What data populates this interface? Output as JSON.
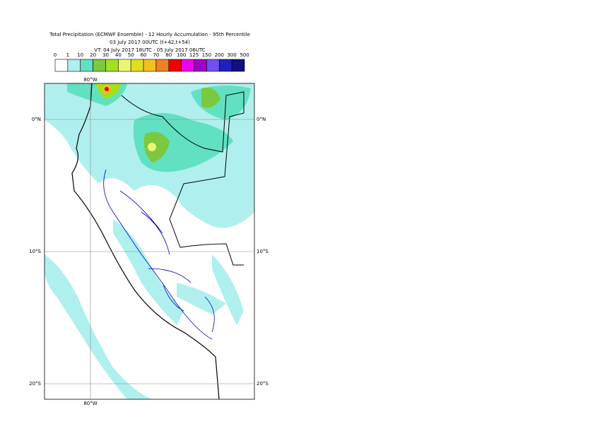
{
  "header": {
    "title": "Total Precipitation (ECMWF Ensemble) - 12 Hourly Accumulation - 95th Percentile",
    "run": "03 July 2017 00UTC (t+42,t+54)",
    "valid": "VT: 04 July 2017 18UTC - 05 July 2017 06UTC"
  },
  "legend": {
    "labels": [
      "0",
      "1",
      "10",
      "20",
      "30",
      "40",
      "50",
      "60",
      "70",
      "80",
      "100",
      "125",
      "150",
      "200",
      "300",
      "500"
    ],
    "colors": [
      "#ffffff",
      "#aff0ee",
      "#62e0c2",
      "#7cc83e",
      "#a2e020",
      "#eaf870",
      "#e0e020",
      "#f2c020",
      "#f28020",
      "#f00000",
      "#f000f0",
      "#a000c8",
      "#7050f0",
      "#2020c0",
      "#101080"
    ]
  },
  "map": {
    "lon_labels": [
      "80°W"
    ],
    "lat_labels": [
      "0°N",
      "10°S",
      "20°S"
    ]
  }
}
